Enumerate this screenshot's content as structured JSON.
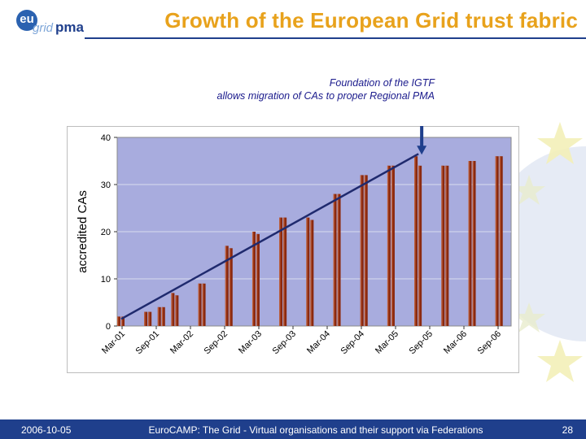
{
  "header": {
    "logo": {
      "eu": "eu",
      "grid": "grid",
      "pma": "pma"
    },
    "title": "Growth of the European Grid trust fabric"
  },
  "annotation": {
    "line1": "Foundation of the IGTF",
    "line2": "allows migration of CAs to proper Regional PMA"
  },
  "chart_data": {
    "type": "bar",
    "ylabel": "accredited CAs",
    "xlabel": "",
    "ylim": [
      0,
      40
    ],
    "yticks": [
      0,
      10,
      20,
      30,
      40
    ],
    "tick_labels": [
      "Mar-01",
      "Sep-01",
      "Mar-02",
      "Sep-02",
      "Mar-03",
      "Sep-03",
      "Mar-04",
      "Sep-04",
      "Mar-05",
      "Sep-05",
      "Mar-06",
      "Sep-06"
    ],
    "bar_groups": [
      {
        "index": 0,
        "values": [
          2,
          2
        ]
      },
      {
        "index": 1,
        "values": [
          3,
          3
        ]
      },
      {
        "index": 1.5,
        "values": [
          4,
          4
        ]
      },
      {
        "index": 2,
        "values": [
          7,
          6.5
        ]
      },
      {
        "index": 3,
        "values": [
          9,
          9
        ]
      },
      {
        "index": 4,
        "values": [
          17,
          16.5
        ]
      },
      {
        "index": 5,
        "values": [
          20,
          19.5
        ]
      },
      {
        "index": 6,
        "values": [
          23,
          23
        ]
      },
      {
        "index": 7,
        "values": [
          23,
          22.5
        ]
      },
      {
        "index": 8,
        "values": [
          28,
          28
        ]
      },
      {
        "index": 9,
        "values": [
          32,
          32
        ]
      },
      {
        "index": 10,
        "values": [
          34,
          34
        ]
      },
      {
        "index": 11,
        "values": [
          36,
          34
        ]
      },
      {
        "index": 12,
        "values": [
          34,
          34
        ]
      },
      {
        "index": 13,
        "values": [
          35,
          35
        ]
      },
      {
        "index": 14,
        "values": [
          36,
          36
        ]
      }
    ],
    "trend_line": {
      "start": [
        0,
        1.5
      ],
      "end": [
        11,
        36.5
      ],
      "color": "#1f2a6e"
    },
    "arrow": {
      "x_index": 11,
      "from_y": 48,
      "to_y": 36.5,
      "color": "#1f3f8c"
    },
    "colors": {
      "bar": "#8b2a10",
      "bar_light": "#c0603a",
      "plot_bg": "#a8acde",
      "grid": "#d9dbef",
      "trend": "#1f2a6e"
    }
  },
  "footer": {
    "date": "2006-10-05",
    "text": "EuroCAMP: The Grid - Virtual organisations and their support via Federations",
    "page": "28"
  }
}
